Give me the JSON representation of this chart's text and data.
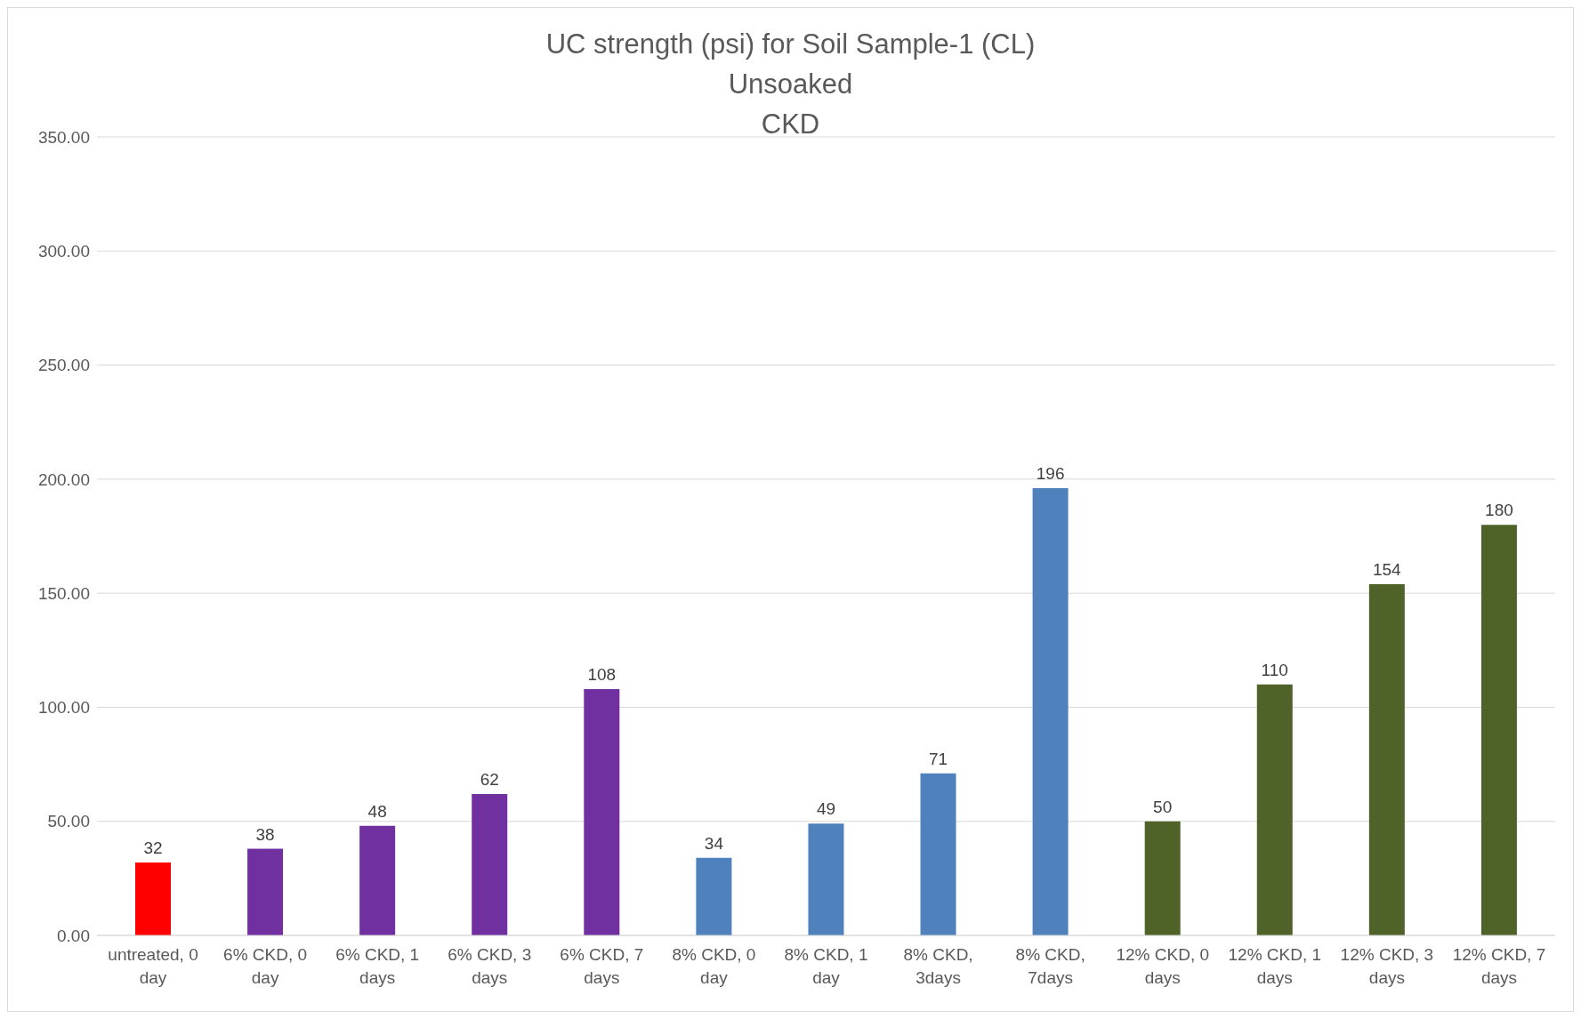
{
  "chart_data": {
    "type": "bar",
    "title": "UC strength (psi) for Soil Sample-1 (CL)\nUnsoaked\nCKD",
    "categories": [
      "untreated, 0 day",
      "6% CKD, 0 day",
      "6% CKD, 1 days",
      "6% CKD, 3 days",
      "6% CKD, 7 days",
      "8% CKD, 0 day",
      "8% CKD, 1 day",
      "8% CKD, 3days",
      "8% CKD, 7days",
      "12% CKD, 0 days",
      "12% CKD, 1 days",
      "12% CKD, 3 days",
      "12% CKD, 7 days"
    ],
    "values": [
      32,
      38,
      48,
      62,
      108,
      34,
      49,
      71,
      196,
      50,
      110,
      154,
      180
    ],
    "colors": [
      "#ff0000",
      "#7030a0",
      "#7030a0",
      "#7030a0",
      "#7030a0",
      "#4f81bd",
      "#4f81bd",
      "#4f81bd",
      "#4f81bd",
      "#4f6228",
      "#4f6228",
      "#4f6228",
      "#4f6228"
    ],
    "ylim": [
      0,
      350
    ],
    "yticks": [
      {
        "value": 0,
        "label": "0.00"
      },
      {
        "value": 50,
        "label": "50.00"
      },
      {
        "value": 100,
        "label": "100.00"
      },
      {
        "value": 150,
        "label": "150.00"
      },
      {
        "value": 200,
        "label": "200.00"
      },
      {
        "value": 250,
        "label": "250.00"
      },
      {
        "value": 300,
        "label": "300.00"
      },
      {
        "value": 350,
        "label": "350.00"
      }
    ],
    "grid": "y",
    "data_labels": true,
    "legend": false
  }
}
